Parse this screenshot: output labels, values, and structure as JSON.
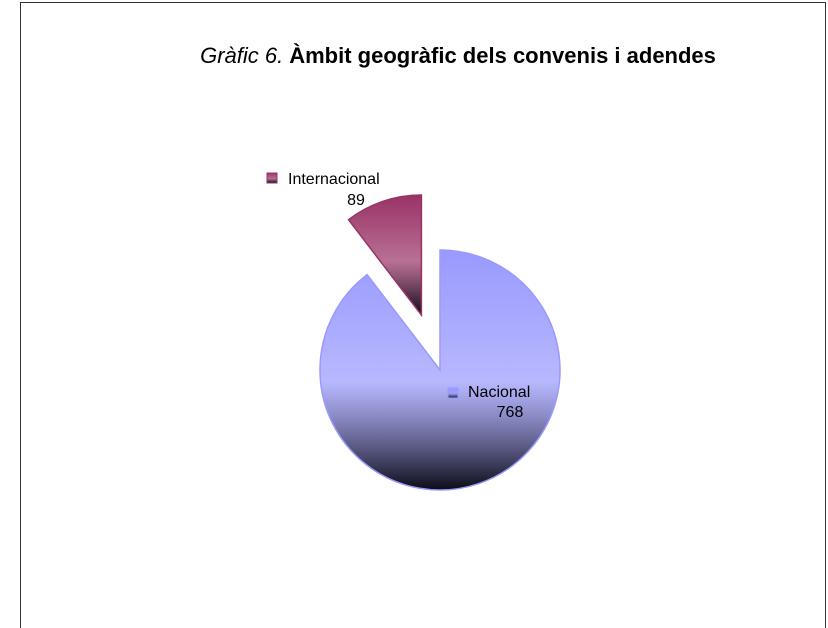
{
  "chart_data": {
    "type": "pie",
    "title": [
      "Gràfic 6.",
      "Àmbit geogràfic dels convenis i adendes"
    ],
    "categories": [
      "Nacional",
      "Internacional"
    ],
    "values": [
      768,
      89
    ],
    "colors": [
      "#9999ff",
      "#993366"
    ],
    "explode": [
      false,
      true
    ]
  }
}
